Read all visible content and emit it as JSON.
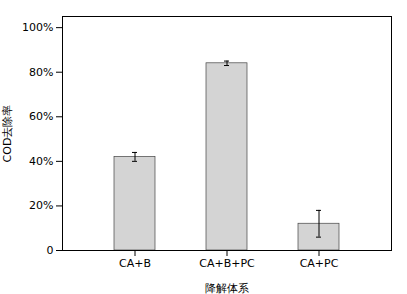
{
  "chart_data": {
    "type": "bar",
    "xlabel": "降解体系",
    "ylabel": "COD去除率",
    "categories": [
      "CA+B",
      "CA+B+PC",
      "CA+PC"
    ],
    "values": [
      0.42,
      0.84,
      0.12
    ],
    "errors": [
      0.02,
      0.01,
      0.06
    ],
    "color": "#d4d4d4",
    "ylim": [
      0,
      1.05
    ],
    "yticks": [
      0,
      {
        "value": 0.2,
        "label": "20%"
      },
      {
        "value": 0.4,
        "label": "40%"
      },
      {
        "value": 0.6,
        "label": "60%"
      },
      {
        "value": 0.8,
        "label": "80%"
      },
      {
        "value": 1.0,
        "label": "100%"
      }
    ],
    "grid": false
  }
}
